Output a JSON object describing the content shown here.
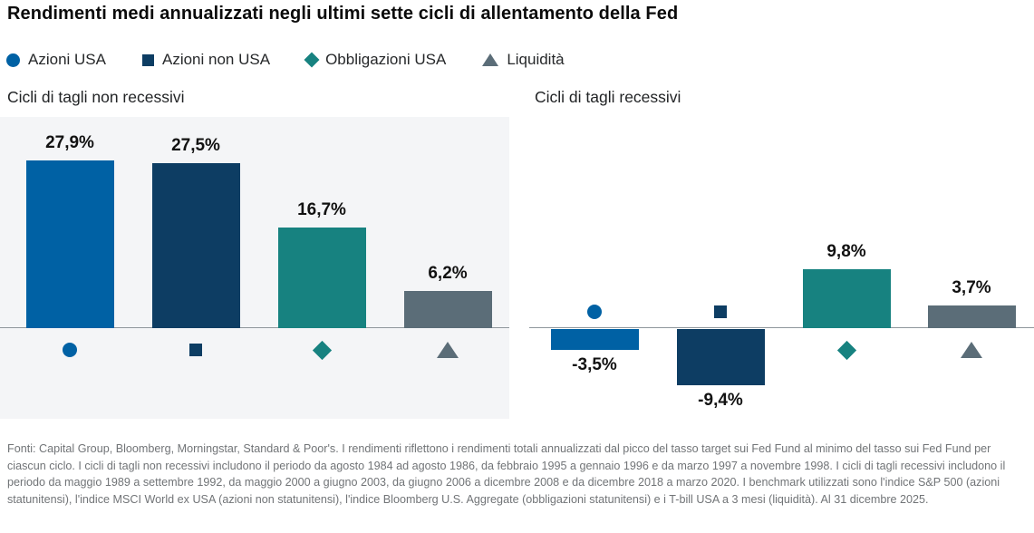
{
  "header": {
    "title": "Rendimenti medi annualizzati negli ultimi sette cicli di allentamento della Fed"
  },
  "legend": {
    "position": "top-left",
    "items": [
      {
        "label": "Azioni USA",
        "marker": "circle",
        "color": "#0061a4"
      },
      {
        "label": "Azioni non USA",
        "marker": "square",
        "color": "#0d3d63"
      },
      {
        "label": "Obbligazioni USA",
        "marker": "diamond",
        "color": "#178280"
      },
      {
        "label": "Liquidità",
        "marker": "triangle",
        "color": "#5b6d78"
      }
    ]
  },
  "chart_data": {
    "type": "bar",
    "title": "Rendimenti medi annualizzati negli ultimi sette cicli di allentamento della Fed",
    "unit": "%",
    "series_names": [
      "Azioni USA",
      "Azioni non USA",
      "Obbligazioni USA",
      "Liquidità"
    ],
    "markers": [
      "circle",
      "square",
      "diamond",
      "triangle"
    ],
    "colors": [
      "#0061a4",
      "#0d3d63",
      "#178280",
      "#5b6d78"
    ],
    "y_axis": {
      "baseline_value": 0,
      "gridlines": false,
      "tick_labels": "none",
      "value_labels": "on_bars"
    },
    "panels": [
      {
        "title": "Cicli di tagli non recessivi",
        "background": "#f4f5f7",
        "categories": [
          "Azioni USA",
          "Azioni non USA",
          "Obbligazioni USA",
          "Liquidità"
        ],
        "values": [
          27.9,
          27.5,
          16.7,
          6.2
        ],
        "labels": [
          "27,9%",
          "27,5%",
          "16,7%",
          "6,2%"
        ]
      },
      {
        "title": "Cicli di tagli recessivi",
        "background": "#ffffff",
        "categories": [
          "Azioni USA",
          "Azioni non USA",
          "Obbligazioni USA",
          "Liquidità"
        ],
        "values": [
          -3.5,
          -9.4,
          9.8,
          3.7
        ],
        "labels": [
          "-3,5%",
          "-9,4%",
          "9,8%",
          "3,7%"
        ]
      }
    ]
  },
  "styles": {
    "panel_background": "#f4f5f7",
    "axis_line": "#8f969c",
    "title_color": "#0b0b0b",
    "footer_color": "#717477"
  },
  "footer": {
    "text": "Fonti: Capital Group, Bloomberg, Morningstar, Standard & Poor's. I rendimenti riflettono i rendimenti totali annualizzati dal picco del tasso target sui Fed Fund al minimo del tasso sui Fed Fund per ciascun ciclo. I cicli di tagli non recessivi includono il periodo da agosto 1984 ad agosto 1986, da febbraio 1995 a gennaio 1996 e da marzo 1997 a novembre 1998. I cicli di tagli recessivi includono il periodo da maggio 1989 a settembre 1992, da maggio 2000 a giugno 2003, da giugno 2006 a dicembre 2008 e da dicembre 2018 a marzo 2020. I benchmark utilizzati sono l'indice S&P 500 (azioni statunitensi), l'indice MSCI World ex USA (azioni non statunitensi), l'indice Bloomberg U.S. Aggregate (obbligazioni statunitensi) e i T-bill USA a 3 mesi (liquidità). Al 31 dicembre 2025."
  }
}
